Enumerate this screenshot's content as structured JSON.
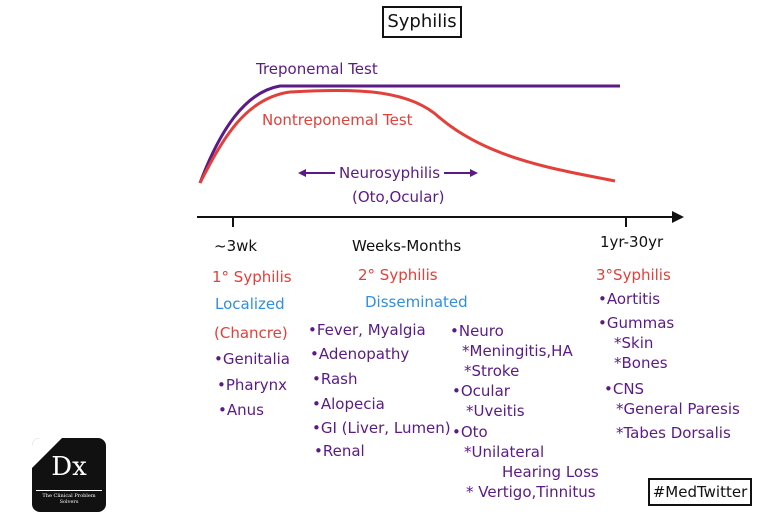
{
  "title": "Syphilis",
  "curves": {
    "treponemal_label": "Treponemal Test",
    "nontreponemal_label": "Nontreponemal Test",
    "neurosyphilis": "Neurosyphilis",
    "neurosyphilis_sub": "(Oto,Ocular)",
    "treponemal_color": "#5b1a86",
    "nontreponemal_color": "#e2403a"
  },
  "timeline": {
    "t1": "~3wk",
    "t2": "Weeks-Months",
    "t3": "1yr-30yr"
  },
  "primary": {
    "heading": "1° Syphilis",
    "type": "Localized",
    "chancre": "(Chancre)",
    "items": [
      "•Genitalia",
      "•Pharynx",
      "•Anus"
    ]
  },
  "secondary": {
    "heading": "2° Syphilis",
    "type": "Disseminated",
    "col1": [
      "•Fever, Myalgia",
      "•Adenopathy",
      "•Rash",
      "•Alopecia",
      "•GI (Liver, Lumen)",
      "•Renal"
    ],
    "neuro": "•Neuro",
    "neuro_items": [
      "*Meningitis,HA",
      "*Stroke"
    ],
    "ocular": "•Ocular",
    "ocular_items": [
      "*Uveitis"
    ],
    "oto": "•Oto",
    "oto_items": [
      "*Unilateral",
      "Hearing Loss",
      "* Vertigo,Tinnitus"
    ]
  },
  "tertiary": {
    "heading": "3°Syphilis",
    "aortitis": "•Aortitis",
    "gummas": "•Gummas",
    "gummas_items": [
      "*Skin",
      "*Bones"
    ],
    "cns": "•CNS",
    "cns_items": [
      "*General Paresis",
      "*Tabes Dorsalis"
    ]
  },
  "hashtag": "#MedTwitter",
  "logo": {
    "text": "Dx",
    "subtitle": "The Clinical Problem Solvers"
  }
}
